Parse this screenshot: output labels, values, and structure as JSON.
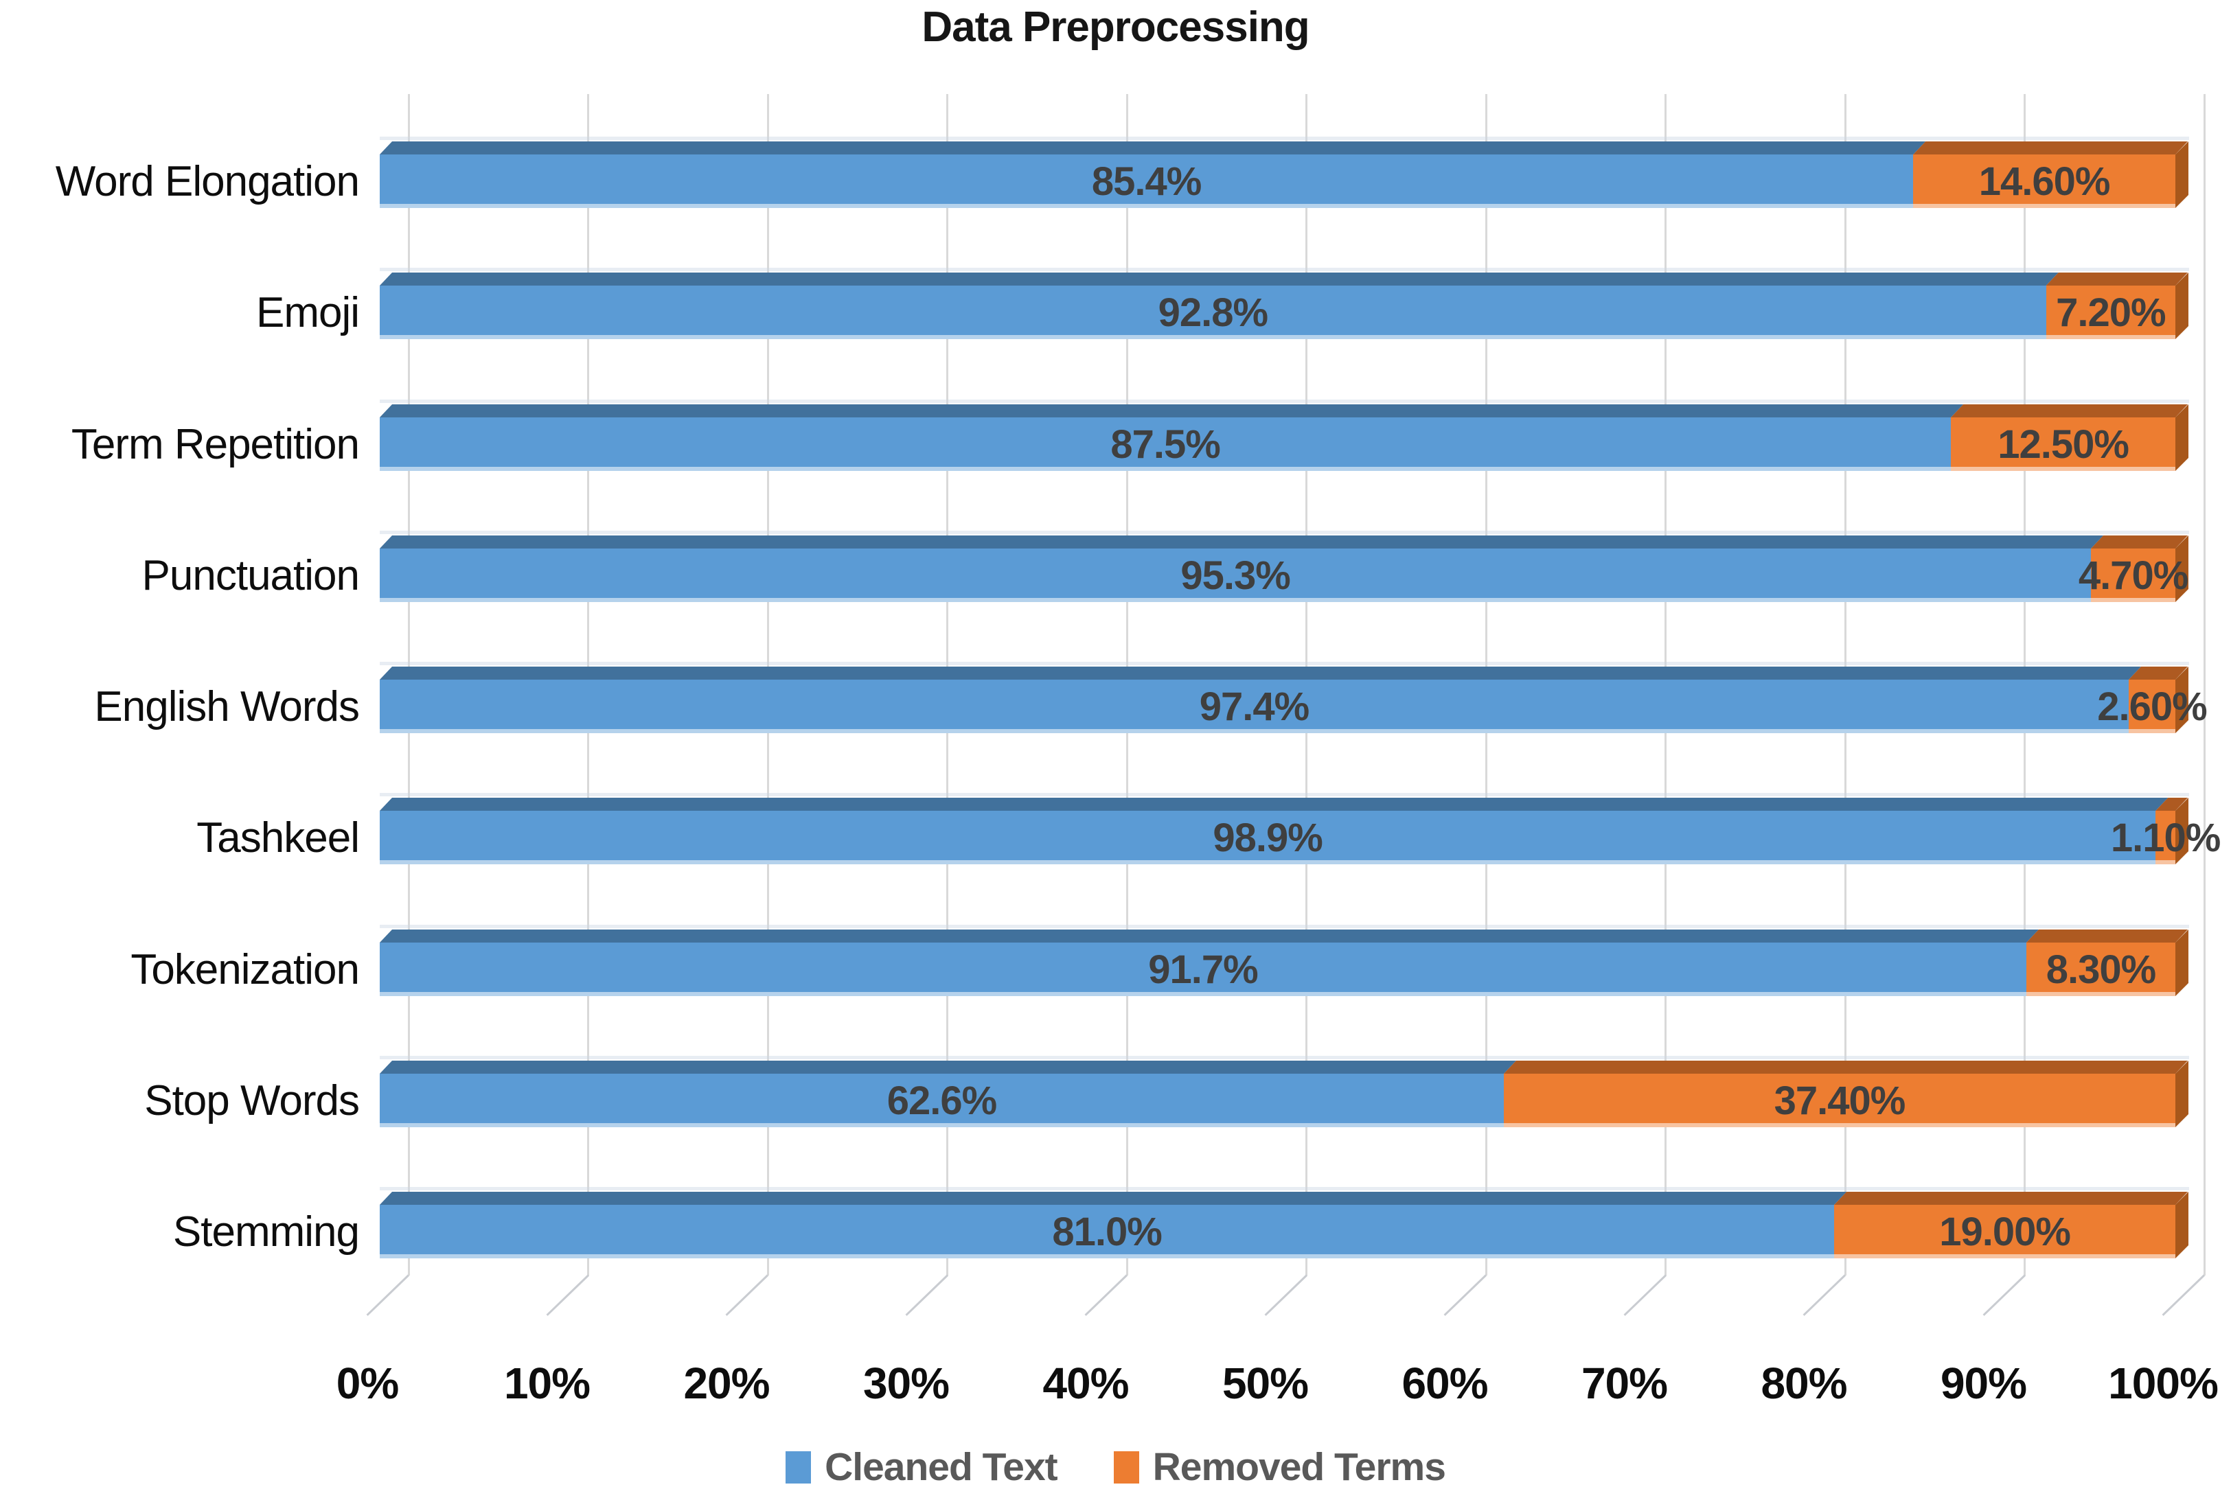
{
  "chart_data": {
    "type": "bar",
    "orientation": "horizontal",
    "stacked": true,
    "effect": "3d",
    "title": "Data Preprocessing",
    "categories": [
      "Word Elongation",
      "Emoji",
      "Term Repetition",
      "Punctuation",
      "English Words",
      "Tashkeel",
      "Tokenization",
      "Stop Words",
      "Stemming"
    ],
    "series": [
      {
        "name": "Cleaned Text",
        "color": "#5B9BD5",
        "color_dark": "#41719C",
        "color_cap": "#41719C",
        "values": [
          85.4,
          92.8,
          87.5,
          95.3,
          97.4,
          98.9,
          91.7,
          62.6,
          81.0
        ],
        "labels": [
          "85.4%",
          "92.8%",
          "87.5%",
          "95.3%",
          "97.4%",
          "98.9%",
          "91.7%",
          "62.6%",
          "81.0%"
        ]
      },
      {
        "name": "Removed Terms",
        "color": "#ED7D31",
        "color_dark": "#AE5A21",
        "color_cap": "#A8571B",
        "values": [
          14.6,
          7.2,
          12.5,
          4.7,
          2.6,
          1.1,
          8.3,
          37.4,
          19.0
        ],
        "labels": [
          "14.60%",
          "7.20%",
          "12.50%",
          "4.70%",
          "2.60%",
          "1.10%",
          "8.30%",
          "37.40%",
          "19.00%"
        ]
      }
    ],
    "x_axis": {
      "min": 0,
      "max": 100,
      "step": 10,
      "tick_labels": [
        "0%",
        "10%",
        "20%",
        "30%",
        "40%",
        "50%",
        "60%",
        "70%",
        "80%",
        "90%",
        "100%"
      ]
    },
    "grid": true,
    "legend_position": "bottom",
    "styles": {
      "gridline_color": "#D9D9D9",
      "value_label_color": "#3F3F3F",
      "axis_label_color": "#0d0d0d",
      "legend_text_color": "#595959",
      "title_color": "#161616",
      "background": "#FFFFFF"
    }
  }
}
